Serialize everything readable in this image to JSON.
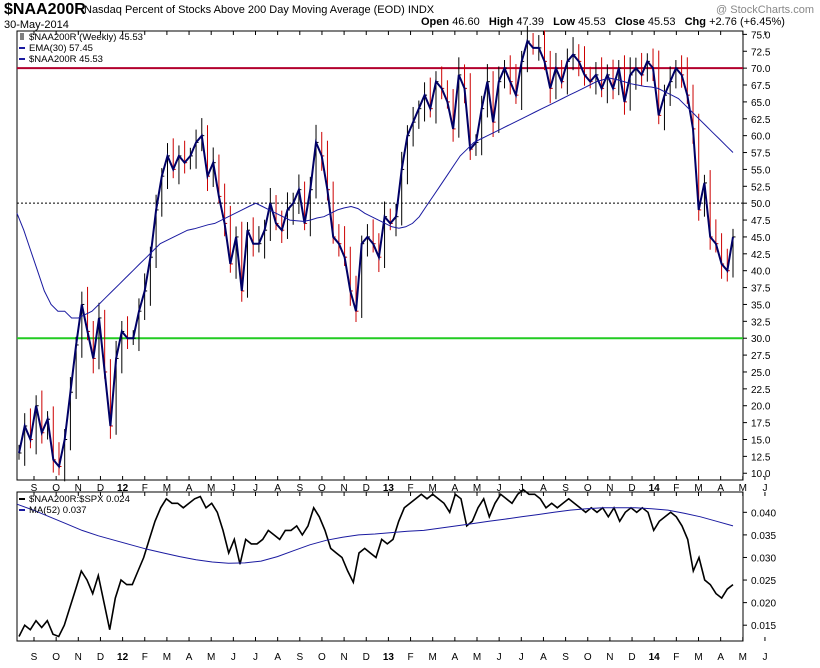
{
  "header": {
    "ticker": "$NAA200R",
    "subtitle": "Nasdaq Percent of Stocks Above 200 Day Moving Average (EOD)  INDX",
    "date": "30-May-2014",
    "open_label": "Open",
    "open": "46.60",
    "high_label": "High",
    "high": "47.39",
    "low_label": "Low",
    "low": "45.53",
    "close_label": "Close",
    "close": "45.53",
    "chg_label": "Chg",
    "chg": "+2.76 (+6.45%)",
    "watermark": "@ StockCharts.com"
  },
  "colors": {
    "price": "#000066",
    "down_bar": "#cc0000",
    "ema": "#1a1aa0",
    "level70": "#b3002d",
    "level30": "#22cc22",
    "ratio": "#000000",
    "ma52": "#1a1aa0"
  },
  "chart_data": [
    {
      "type": "line",
      "panel": "main",
      "legend": [
        {
          "name": "$NAA200R (Weekly) 45.53",
          "marker": "ohlc"
        },
        {
          "name": "EMA(30) 57.45",
          "marker": "line"
        },
        {
          "name": "$NAA200R 45.53",
          "marker": "line"
        }
      ],
      "x_ticks": [
        "S",
        "O",
        "N",
        "D",
        "12",
        "F",
        "M",
        "A",
        "M",
        "J",
        "J",
        "A",
        "S",
        "O",
        "N",
        "D",
        "13",
        "F",
        "M",
        "A",
        "M",
        "J",
        "J",
        "A",
        "S",
        "O",
        "N",
        "D",
        "14",
        "F",
        "M",
        "A",
        "M",
        "J"
      ],
      "y_ticks": [
        10.0,
        12.5,
        15.0,
        17.5,
        20.0,
        22.5,
        25.0,
        27.5,
        30.0,
        32.5,
        35.0,
        37.5,
        40.0,
        42.5,
        45.0,
        47.5,
        50.0,
        52.5,
        55.0,
        57.5,
        60.0,
        62.5,
        65.0,
        67.5,
        70.0,
        72.5,
        75.0
      ],
      "ylim": [
        9,
        75.5
      ],
      "reference_lines": [
        {
          "value": 70.0,
          "style": "solid",
          "color": "level70"
        },
        {
          "value": 50.0,
          "style": "dotted",
          "color": "black"
        },
        {
          "value": 30.0,
          "style": "solid",
          "color": "level30"
        }
      ],
      "series": [
        {
          "name": "$NAA200R",
          "values": [
            13,
            17,
            15,
            20,
            16,
            18,
            12,
            11,
            15,
            22,
            29,
            35,
            31,
            27,
            33,
            25,
            17,
            27,
            31,
            30,
            30,
            34,
            37,
            42,
            49,
            54,
            57,
            55,
            57,
            56,
            57,
            59,
            60,
            54,
            56,
            51,
            47,
            41,
            45,
            37,
            46,
            44,
            44,
            46,
            50,
            47,
            46,
            49,
            50,
            52,
            47,
            52,
            59,
            57,
            52,
            45,
            44,
            42,
            37,
            34,
            44,
            45,
            44,
            42,
            48,
            47,
            48,
            55,
            60,
            62,
            64,
            66,
            64,
            68,
            67,
            65,
            61,
            69,
            67,
            58,
            59,
            64,
            68,
            62,
            68,
            70,
            68,
            66,
            71,
            74,
            73,
            73,
            71,
            67,
            70,
            68,
            71,
            72,
            71,
            69,
            68,
            69,
            67,
            69,
            67,
            70,
            65,
            69,
            70,
            69,
            71,
            70,
            63,
            66,
            68,
            70,
            69,
            66,
            61,
            49,
            53,
            45,
            44,
            41,
            40,
            45
          ]
        },
        {
          "name": "EMA(30)",
          "values": [
            48.5,
            46,
            43,
            40,
            37,
            35,
            34,
            34,
            33,
            33,
            33.5,
            34,
            35,
            36,
            37,
            38,
            39,
            40,
            41,
            42,
            43,
            44,
            44.5,
            45,
            45.5,
            46,
            46.2,
            46.5,
            46.8,
            47,
            47.5,
            48,
            48.5,
            49,
            49.5,
            50,
            49.5,
            49,
            48.5,
            48,
            47.5,
            47.4,
            47.3,
            47.5,
            47.8,
            48,
            48.5,
            49,
            49.3,
            49.5,
            49.2,
            48.5,
            48,
            47.5,
            47,
            46.5,
            46.3,
            46.5,
            47,
            48,
            49.5,
            51,
            52.5,
            54,
            55.5,
            57,
            58,
            59,
            59.5,
            60,
            60.5,
            61,
            61.5,
            62,
            62.5,
            63,
            63.5,
            64,
            64.5,
            65,
            65.5,
            66,
            66.5,
            67,
            67.5,
            68,
            68.3,
            68.5,
            68.3,
            68,
            67.7,
            67.5,
            67.3,
            67.2,
            67,
            66.5,
            66,
            65.5,
            64.5,
            63.5,
            62.5,
            61.5,
            60.5,
            59.5,
            58.5,
            57.5
          ]
        }
      ]
    },
    {
      "type": "line",
      "panel": "lower",
      "legend": [
        {
          "name": "$NAA200R:$SPX 0.024",
          "marker": "line"
        },
        {
          "name": "MA(52) 0.037",
          "marker": "line"
        }
      ],
      "y_ticks": [
        0.015,
        0.02,
        0.025,
        0.03,
        0.035,
        0.04
      ],
      "ylim": [
        0.0115,
        0.0445
      ],
      "series": [
        {
          "name": "$NAA200R:$SPX",
          "values": [
            0.0125,
            0.015,
            0.014,
            0.016,
            0.0145,
            0.016,
            0.013,
            0.0125,
            0.015,
            0.019,
            0.023,
            0.027,
            0.025,
            0.022,
            0.026,
            0.02,
            0.014,
            0.021,
            0.025,
            0.024,
            0.024,
            0.027,
            0.03,
            0.034,
            0.038,
            0.041,
            0.043,
            0.042,
            0.042,
            0.041,
            0.042,
            0.043,
            0.0435,
            0.041,
            0.042,
            0.04,
            0.036,
            0.031,
            0.034,
            0.0285,
            0.034,
            0.033,
            0.033,
            0.034,
            0.036,
            0.035,
            0.034,
            0.036,
            0.036,
            0.037,
            0.035,
            0.037,
            0.041,
            0.039,
            0.036,
            0.032,
            0.031,
            0.03,
            0.027,
            0.0245,
            0.031,
            0.032,
            0.031,
            0.03,
            0.034,
            0.033,
            0.034,
            0.038,
            0.041,
            0.042,
            0.043,
            0.044,
            0.043,
            0.044,
            0.043,
            0.042,
            0.04,
            0.044,
            0.043,
            0.037,
            0.038,
            0.041,
            0.043,
            0.039,
            0.042,
            0.044,
            0.043,
            0.042,
            0.044,
            0.045,
            0.044,
            0.044,
            0.043,
            0.041,
            0.042,
            0.041,
            0.042,
            0.043,
            0.042,
            0.041,
            0.04,
            0.041,
            0.04,
            0.041,
            0.039,
            0.041,
            0.038,
            0.04,
            0.041,
            0.04,
            0.041,
            0.04,
            0.036,
            0.038,
            0.039,
            0.04,
            0.039,
            0.037,
            0.034,
            0.027,
            0.03,
            0.025,
            0.024,
            0.022,
            0.021,
            0.023,
            0.024
          ]
        },
        {
          "name": "MA(52)",
          "values": [
            0.0418,
            0.0405,
            0.039,
            0.0375,
            0.036,
            0.0348,
            0.0338,
            0.0328,
            0.0318,
            0.031,
            0.0302,
            0.0295,
            0.029,
            0.0287,
            0.0288,
            0.0292,
            0.0302,
            0.0315,
            0.0328,
            0.0338,
            0.0345,
            0.035,
            0.0352,
            0.0355,
            0.0358,
            0.036,
            0.0365,
            0.037,
            0.0375,
            0.038,
            0.0385,
            0.039,
            0.0395,
            0.04,
            0.0405,
            0.0408,
            0.041,
            0.041,
            0.041,
            0.0408,
            0.0405,
            0.0398,
            0.039,
            0.038,
            0.037
          ]
        }
      ]
    }
  ]
}
